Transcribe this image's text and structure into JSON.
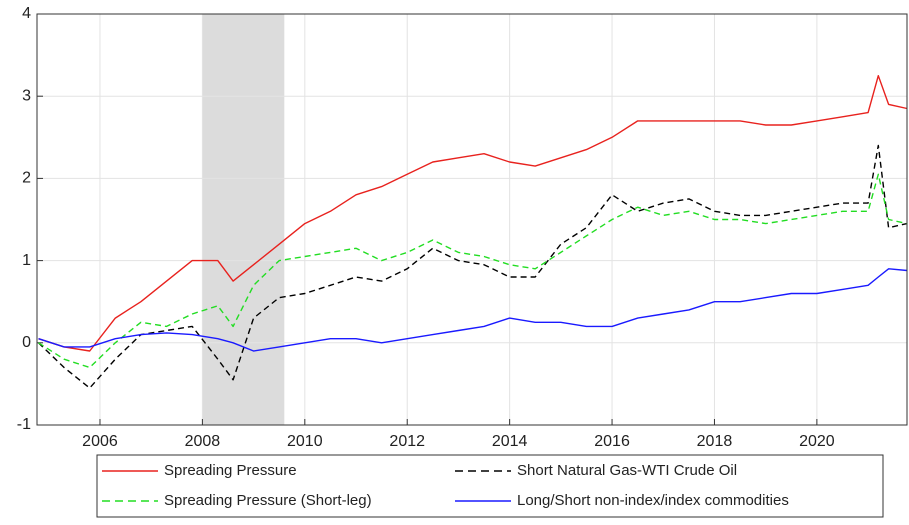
{
  "chart_data": {
    "type": "line",
    "x": [
      2004.8,
      2005.3,
      2005.8,
      2006.3,
      2006.8,
      2007.3,
      2007.8,
      2008.3,
      2008.6,
      2009.0,
      2009.5,
      2010.0,
      2010.5,
      2011.0,
      2011.5,
      2012.0,
      2012.5,
      2013.0,
      2013.5,
      2014.0,
      2014.5,
      2015.0,
      2015.5,
      2016.0,
      2016.5,
      2017.0,
      2017.5,
      2018.0,
      2018.5,
      2019.0,
      2019.5,
      2020.0,
      2020.5,
      2021.0,
      2021.2,
      2021.4,
      2021.76
    ],
    "series": [
      {
        "name": "Spreading Pressure",
        "color": "#e8221e",
        "dash": "solid",
        "values": [
          0.05,
          -0.05,
          -0.1,
          0.3,
          0.5,
          0.75,
          1.0,
          1.0,
          0.75,
          0.95,
          1.2,
          1.45,
          1.6,
          1.8,
          1.9,
          2.05,
          2.2,
          2.25,
          2.3,
          2.2,
          2.15,
          2.25,
          2.35,
          2.5,
          2.7,
          2.7,
          2.7,
          2.7,
          2.7,
          2.65,
          2.65,
          2.7,
          2.75,
          2.8,
          3.25,
          2.9,
          2.85
        ]
      },
      {
        "name": "Short Natural Gas-WTI Crude Oil",
        "color": "#000000",
        "dash": "dashed",
        "values": [
          0,
          -0.3,
          -0.55,
          -0.2,
          0.1,
          0.15,
          0.2,
          -0.2,
          -0.45,
          0.3,
          0.55,
          0.6,
          0.7,
          0.8,
          0.75,
          0.9,
          1.15,
          1.0,
          0.95,
          0.8,
          0.8,
          1.2,
          1.4,
          1.8,
          1.6,
          1.7,
          1.75,
          1.6,
          1.55,
          1.55,
          1.6,
          1.65,
          1.7,
          1.7,
          2.4,
          1.4,
          1.45
        ]
      },
      {
        "name": "Spreading Pressure (Short-leg)",
        "color": "#22dd22",
        "dash": "dashed",
        "values": [
          0,
          -0.2,
          -0.3,
          0.0,
          0.25,
          0.2,
          0.35,
          0.45,
          0.2,
          0.7,
          1.0,
          1.05,
          1.1,
          1.15,
          1.0,
          1.1,
          1.25,
          1.1,
          1.05,
          0.95,
          0.9,
          1.1,
          1.3,
          1.5,
          1.65,
          1.55,
          1.6,
          1.5,
          1.5,
          1.45,
          1.5,
          1.55,
          1.6,
          1.6,
          2.05,
          1.5,
          1.45
        ]
      },
      {
        "name": "Long/Short non-index/index commodities",
        "color": "#1a1aff",
        "dash": "solid",
        "values": [
          0.05,
          -0.05,
          -0.05,
          0.05,
          0.1,
          0.12,
          0.1,
          0.05,
          0.0,
          -0.1,
          -0.05,
          0.0,
          0.05,
          0.05,
          0.0,
          0.05,
          0.1,
          0.15,
          0.2,
          0.3,
          0.25,
          0.25,
          0.2,
          0.2,
          0.3,
          0.35,
          0.4,
          0.5,
          0.5,
          0.55,
          0.6,
          0.6,
          0.65,
          0.7,
          0.8,
          0.9,
          0.88
        ]
      }
    ],
    "shaded_region": [
      2008,
      2009.6
    ],
    "xlim": [
      2004.77,
      2021.76
    ],
    "xticks": [
      2006,
      2008,
      2010,
      2012,
      2014,
      2016,
      2018,
      2020
    ],
    "ylim": [
      -1,
      4
    ],
    "yticks": [
      -1,
      0,
      1,
      2,
      3,
      4
    ],
    "grid": true,
    "legend": "bottom"
  }
}
